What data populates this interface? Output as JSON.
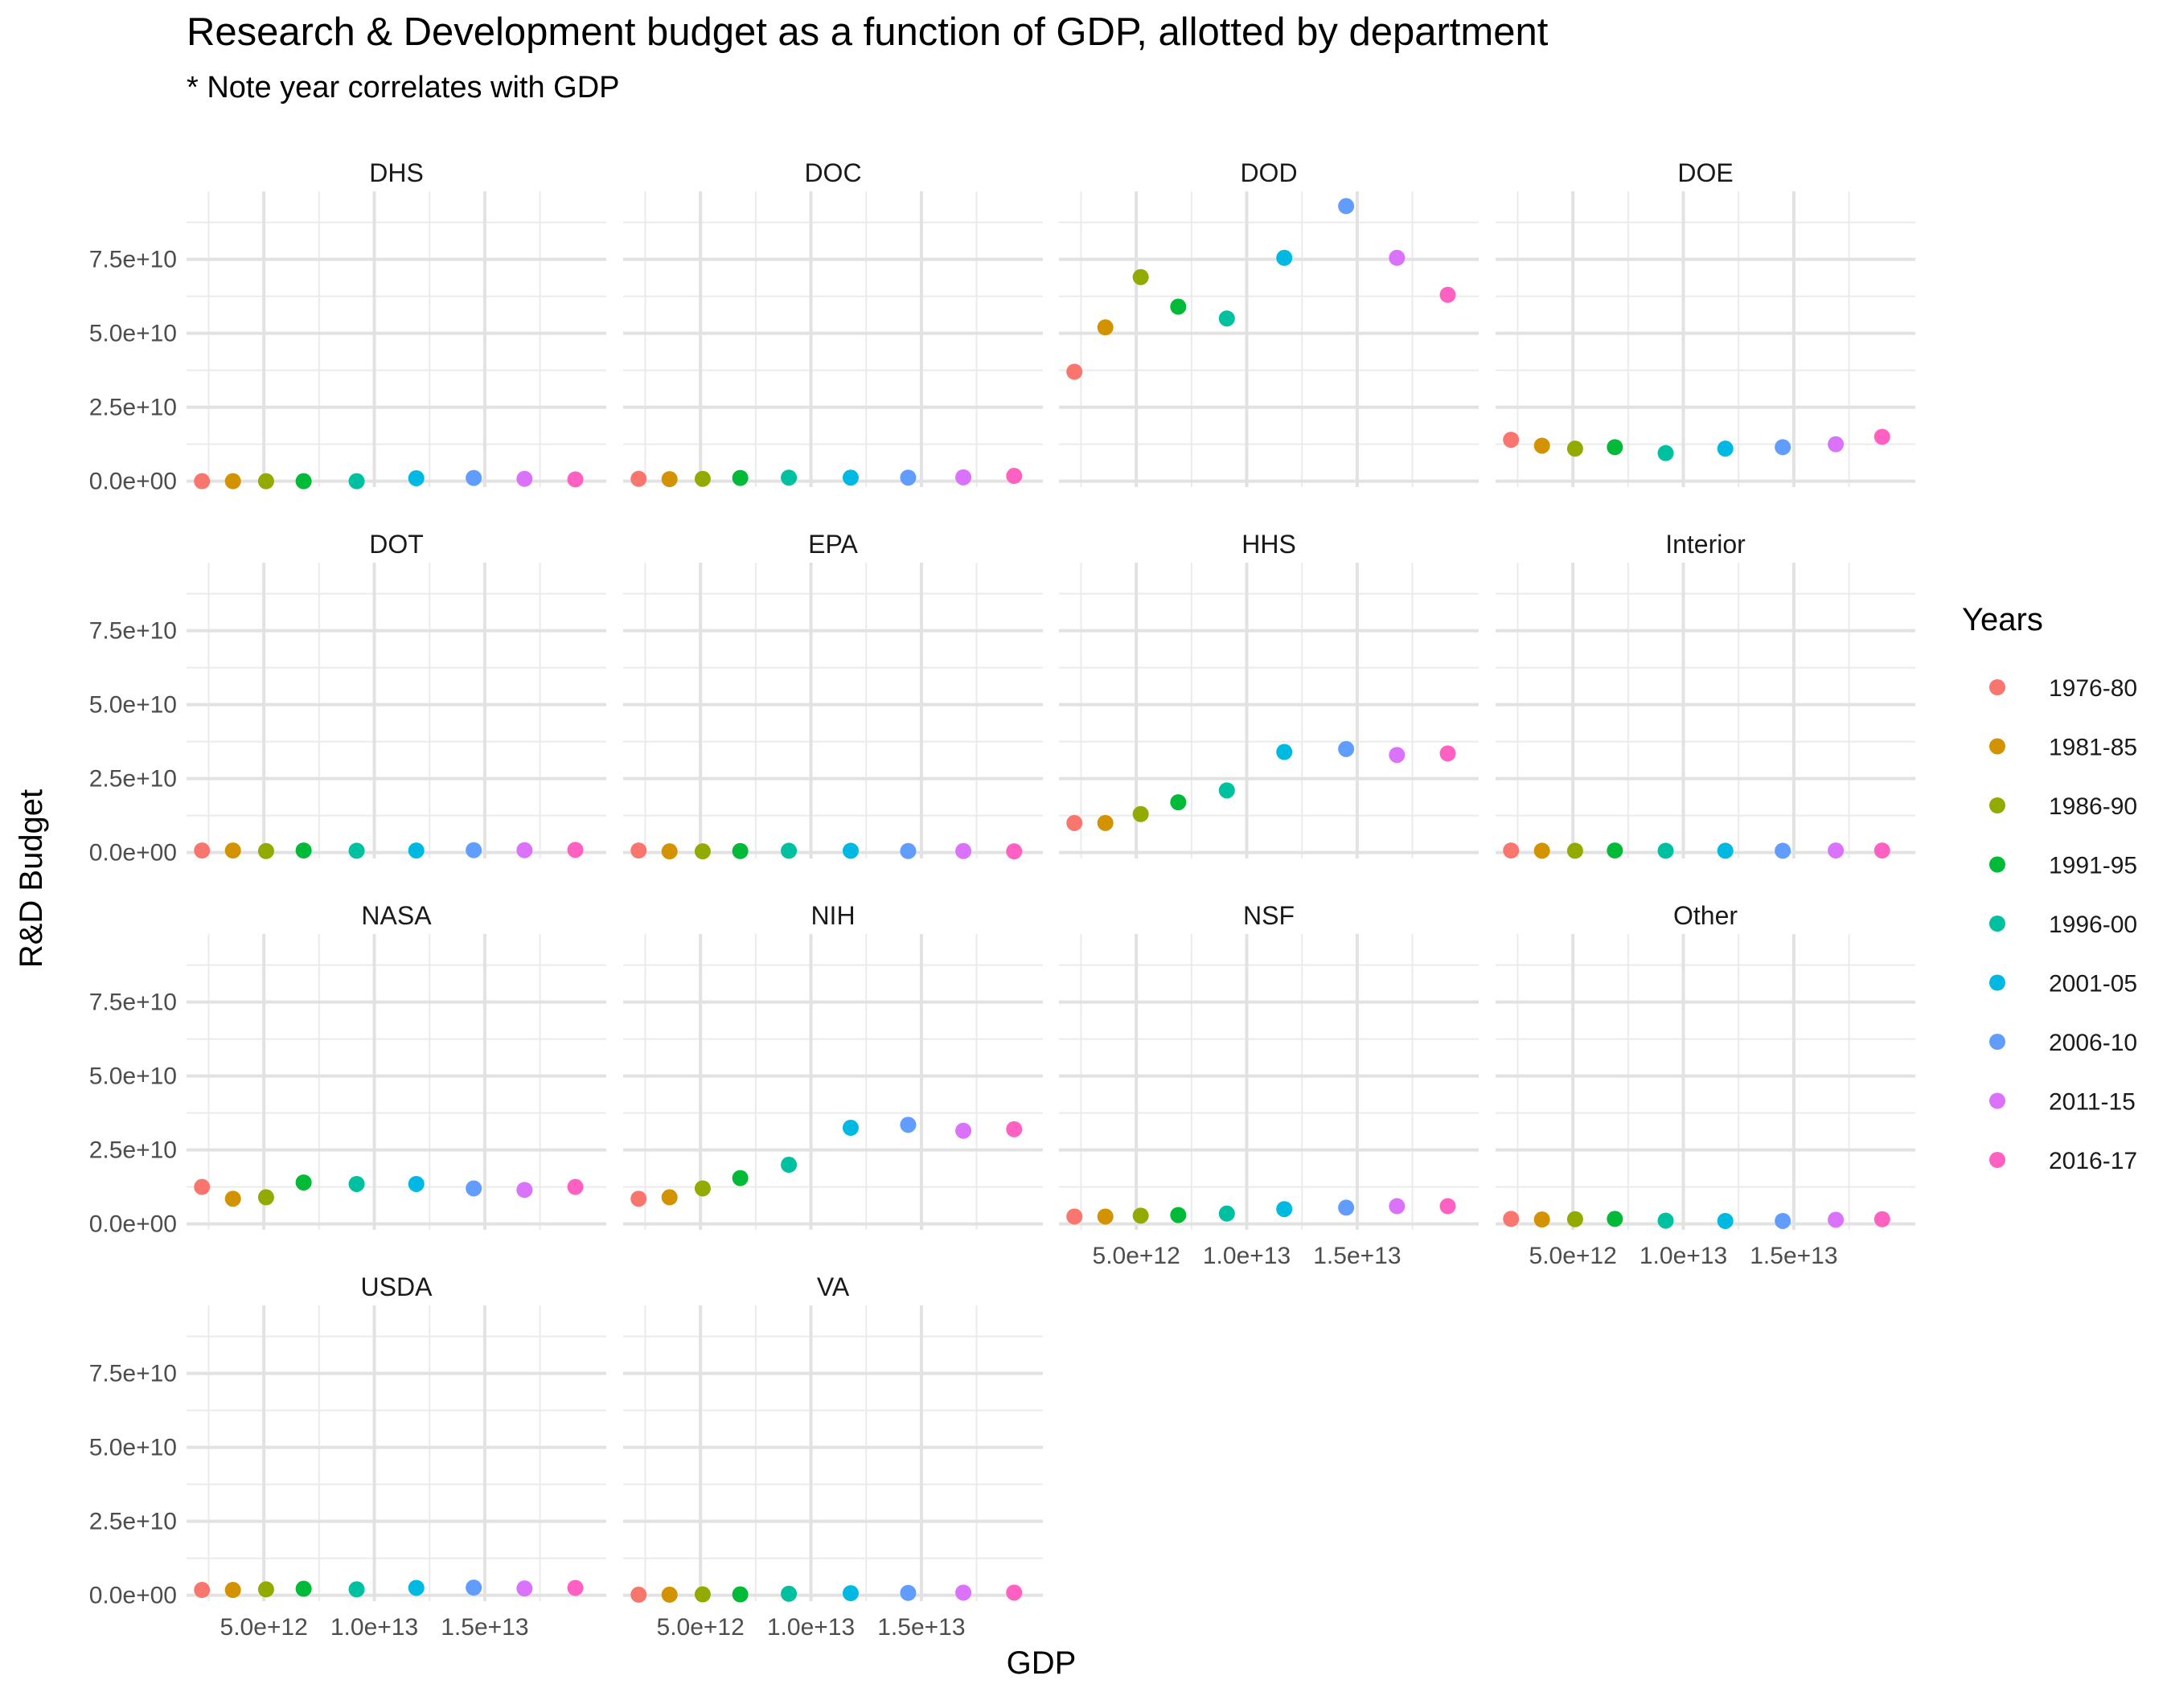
{
  "title": "Research & Development budget as a function of GDP, allotted by department",
  "subtitle": "* Note year correlates with GDP",
  "chart_data": {
    "type": "scatter",
    "facet_layout": "wrap, 4 columns",
    "xlabel": "GDP",
    "ylabel": "R&D Budget",
    "xlim": [
      1500000000000.0,
      20500000000000.0
    ],
    "ylim": [
      -2000000000.0,
      98000000000.0
    ],
    "x_ticks": [
      5000000000000.0,
      10000000000000.0,
      15000000000000.0
    ],
    "x_tick_labels": [
      "5.0e+12",
      "1.0e+13",
      "1.5e+13"
    ],
    "y_ticks": [
      0,
      25000000000.0,
      50000000000.0,
      75000000000.0
    ],
    "y_tick_labels": [
      "0.0e+00",
      "2.5e+10",
      "5.0e+10",
      "7.5e+10"
    ],
    "grid": true,
    "legend": {
      "title": "Years",
      "position": "right",
      "groups": [
        {
          "label": "1976-80",
          "color": "#F8766D"
        },
        {
          "label": "1981-85",
          "color": "#D39200"
        },
        {
          "label": "1986-90",
          "color": "#93AA00"
        },
        {
          "label": "1991-95",
          "color": "#00BA38"
        },
        {
          "label": "1996-00",
          "color": "#00C19F"
        },
        {
          "label": "2001-05",
          "color": "#00B9E3"
        },
        {
          "label": "2006-10",
          "color": "#619CFF"
        },
        {
          "label": "2011-15",
          "color": "#DB72FB"
        },
        {
          "label": "2016-17",
          "color": "#FF61C3"
        }
      ]
    },
    "panels": [
      {
        "name": "DHS",
        "points": [
          {
            "group": "1976-80",
            "x": 2200000000000.0,
            "y": 0
          },
          {
            "group": "1981-85",
            "x": 3600000000000.0,
            "y": 0
          },
          {
            "group": "1986-90",
            "x": 5100000000000.0,
            "y": 0
          },
          {
            "group": "1991-95",
            "x": 6800000000000.0,
            "y": 0
          },
          {
            "group": "1996-00",
            "x": 9200000000000.0,
            "y": 0
          },
          {
            "group": "2001-05",
            "x": 11900000000000.0,
            "y": 1000000000.0
          },
          {
            "group": "2006-10",
            "x": 14500000000000.0,
            "y": 1100000000.0
          },
          {
            "group": "2011-15",
            "x": 16800000000000.0,
            "y": 800000000.0
          },
          {
            "group": "2016-17",
            "x": 19100000000000.0,
            "y": 600000000.0
          }
        ]
      },
      {
        "name": "DOC",
        "points": [
          {
            "group": "1976-80",
            "x": 2200000000000.0,
            "y": 800000000.0
          },
          {
            "group": "1981-85",
            "x": 3600000000000.0,
            "y": 700000000.0
          },
          {
            "group": "1986-90",
            "x": 5100000000000.0,
            "y": 800000000.0
          },
          {
            "group": "1991-95",
            "x": 6800000000000.0,
            "y": 1100000000.0
          },
          {
            "group": "1996-00",
            "x": 9000000000000.0,
            "y": 1200000000.0
          },
          {
            "group": "2001-05",
            "x": 11800000000000.0,
            "y": 1200000000.0
          },
          {
            "group": "2006-10",
            "x": 14400000000000.0,
            "y": 1200000000.0
          },
          {
            "group": "2011-15",
            "x": 16900000000000.0,
            "y": 1300000000.0
          },
          {
            "group": "2016-17",
            "x": 19200000000000.0,
            "y": 1800000000.0
          }
        ]
      },
      {
        "name": "DOD",
        "points": [
          {
            "group": "1976-80",
            "x": 2200000000000.0,
            "y": 37000000000.0
          },
          {
            "group": "1981-85",
            "x": 3600000000000.0,
            "y": 52000000000.0
          },
          {
            "group": "1986-90",
            "x": 5200000000000.0,
            "y": 69000000000.0
          },
          {
            "group": "1991-95",
            "x": 6900000000000.0,
            "y": 59000000000.0
          },
          {
            "group": "1996-00",
            "x": 9100000000000.0,
            "y": 55000000000.0
          },
          {
            "group": "2001-05",
            "x": 11700000000000.0,
            "y": 75500000000.0
          },
          {
            "group": "2006-10",
            "x": 14500000000000.0,
            "y": 93000000000.0
          },
          {
            "group": "2011-15",
            "x": 16800000000000.0,
            "y": 75500000000.0
          },
          {
            "group": "2016-17",
            "x": 19100000000000.0,
            "y": 63000000000.0
          }
        ]
      },
      {
        "name": "DOE",
        "points": [
          {
            "group": "1976-80",
            "x": 2200000000000.0,
            "y": 14000000000.0
          },
          {
            "group": "1981-85",
            "x": 3600000000000.0,
            "y": 12000000000.0
          },
          {
            "group": "1986-90",
            "x": 5100000000000.0,
            "y": 11000000000.0
          },
          {
            "group": "1991-95",
            "x": 6900000000000.0,
            "y": 11500000000.0
          },
          {
            "group": "1996-00",
            "x": 9200000000000.0,
            "y": 9500000000.0
          },
          {
            "group": "2001-05",
            "x": 11900000000000.0,
            "y": 11000000000.0
          },
          {
            "group": "2006-10",
            "x": 14500000000000.0,
            "y": 11500000000.0
          },
          {
            "group": "2011-15",
            "x": 16900000000000.0,
            "y": 12500000000.0
          },
          {
            "group": "2016-17",
            "x": 19000000000000.0,
            "y": 15000000000.0
          }
        ]
      },
      {
        "name": "DOT",
        "points": [
          {
            "group": "1976-80",
            "x": 2200000000000.0,
            "y": 700000000.0
          },
          {
            "group": "1981-85",
            "x": 3600000000000.0,
            "y": 700000000.0
          },
          {
            "group": "1986-90",
            "x": 5100000000000.0,
            "y": 500000000.0
          },
          {
            "group": "1991-95",
            "x": 6800000000000.0,
            "y": 700000000.0
          },
          {
            "group": "1996-00",
            "x": 9200000000000.0,
            "y": 600000000.0
          },
          {
            "group": "2001-05",
            "x": 11900000000000.0,
            "y": 700000000.0
          },
          {
            "group": "2006-10",
            "x": 14500000000000.0,
            "y": 800000000.0
          },
          {
            "group": "2011-15",
            "x": 16800000000000.0,
            "y": 800000000.0
          },
          {
            "group": "2016-17",
            "x": 19100000000000.0,
            "y": 900000000.0
          }
        ]
      },
      {
        "name": "EPA",
        "points": [
          {
            "group": "1976-80",
            "x": 2200000000000.0,
            "y": 700000000.0
          },
          {
            "group": "1981-85",
            "x": 3600000000000.0,
            "y": 400000000.0
          },
          {
            "group": "1986-90",
            "x": 5100000000000.0,
            "y": 400000000.0
          },
          {
            "group": "1991-95",
            "x": 6800000000000.0,
            "y": 500000000.0
          },
          {
            "group": "1996-00",
            "x": 9000000000000.0,
            "y": 600000000.0
          },
          {
            "group": "2001-05",
            "x": 11800000000000.0,
            "y": 600000000.0
          },
          {
            "group": "2006-10",
            "x": 14400000000000.0,
            "y": 500000000.0
          },
          {
            "group": "2011-15",
            "x": 16900000000000.0,
            "y": 500000000.0
          },
          {
            "group": "2016-17",
            "x": 19200000000000.0,
            "y": 400000000.0
          }
        ]
      },
      {
        "name": "HHS",
        "points": [
          {
            "group": "1976-80",
            "x": 2200000000000.0,
            "y": 10000000000.0
          },
          {
            "group": "1981-85",
            "x": 3600000000000.0,
            "y": 10000000000.0
          },
          {
            "group": "1986-90",
            "x": 5200000000000.0,
            "y": 13000000000.0
          },
          {
            "group": "1991-95",
            "x": 6900000000000.0,
            "y": 17000000000.0
          },
          {
            "group": "1996-00",
            "x": 9100000000000.0,
            "y": 21000000000.0
          },
          {
            "group": "2001-05",
            "x": 11700000000000.0,
            "y": 34000000000.0
          },
          {
            "group": "2006-10",
            "x": 14500000000000.0,
            "y": 35000000000.0
          },
          {
            "group": "2011-15",
            "x": 16800000000000.0,
            "y": 33000000000.0
          },
          {
            "group": "2016-17",
            "x": 19100000000000.0,
            "y": 33500000000.0
          }
        ]
      },
      {
        "name": "Interior",
        "points": [
          {
            "group": "1976-80",
            "x": 2200000000000.0,
            "y": 700000000.0
          },
          {
            "group": "1981-85",
            "x": 3600000000000.0,
            "y": 600000000.0
          },
          {
            "group": "1986-90",
            "x": 5100000000000.0,
            "y": 600000000.0
          },
          {
            "group": "1991-95",
            "x": 6900000000000.0,
            "y": 700000000.0
          },
          {
            "group": "1996-00",
            "x": 9200000000000.0,
            "y": 600000000.0
          },
          {
            "group": "2001-05",
            "x": 11900000000000.0,
            "y": 600000000.0
          },
          {
            "group": "2006-10",
            "x": 14500000000000.0,
            "y": 600000000.0
          },
          {
            "group": "2011-15",
            "x": 16900000000000.0,
            "y": 700000000.0
          },
          {
            "group": "2016-17",
            "x": 19000000000000.0,
            "y": 700000000.0
          }
        ]
      },
      {
        "name": "NASA",
        "points": [
          {
            "group": "1976-80",
            "x": 2200000000000.0,
            "y": 12500000000.0
          },
          {
            "group": "1981-85",
            "x": 3600000000000.0,
            "y": 8500000000.0
          },
          {
            "group": "1986-90",
            "x": 5100000000000.0,
            "y": 9000000000.0
          },
          {
            "group": "1991-95",
            "x": 6800000000000.0,
            "y": 14000000000.0
          },
          {
            "group": "1996-00",
            "x": 9200000000000.0,
            "y": 13500000000.0
          },
          {
            "group": "2001-05",
            "x": 11900000000000.0,
            "y": 13500000000.0
          },
          {
            "group": "2006-10",
            "x": 14500000000000.0,
            "y": 12000000000.0
          },
          {
            "group": "2011-15",
            "x": 16800000000000.0,
            "y": 11500000000.0
          },
          {
            "group": "2016-17",
            "x": 19100000000000.0,
            "y": 12500000000.0
          }
        ]
      },
      {
        "name": "NIH",
        "points": [
          {
            "group": "1976-80",
            "x": 2200000000000.0,
            "y": 8500000000.0
          },
          {
            "group": "1981-85",
            "x": 3600000000000.0,
            "y": 9000000000.0
          },
          {
            "group": "1986-90",
            "x": 5100000000000.0,
            "y": 12000000000.0
          },
          {
            "group": "1991-95",
            "x": 6800000000000.0,
            "y": 15500000000.0
          },
          {
            "group": "1996-00",
            "x": 9000000000000.0,
            "y": 20000000000.0
          },
          {
            "group": "2001-05",
            "x": 11800000000000.0,
            "y": 32500000000.0
          },
          {
            "group": "2006-10",
            "x": 14400000000000.0,
            "y": 33500000000.0
          },
          {
            "group": "2011-15",
            "x": 16900000000000.0,
            "y": 31500000000.0
          },
          {
            "group": "2016-17",
            "x": 19200000000000.0,
            "y": 32000000000.0
          }
        ]
      },
      {
        "name": "NSF",
        "points": [
          {
            "group": "1976-80",
            "x": 2200000000000.0,
            "y": 2500000000.0
          },
          {
            "group": "1981-85",
            "x": 3600000000000.0,
            "y": 2500000000.0
          },
          {
            "group": "1986-90",
            "x": 5200000000000.0,
            "y": 2800000000.0
          },
          {
            "group": "1991-95",
            "x": 6900000000000.0,
            "y": 3000000000.0
          },
          {
            "group": "1996-00",
            "x": 9100000000000.0,
            "y": 3500000000.0
          },
          {
            "group": "2001-05",
            "x": 11700000000000.0,
            "y": 5000000000.0
          },
          {
            "group": "2006-10",
            "x": 14500000000000.0,
            "y": 5500000000.0
          },
          {
            "group": "2011-15",
            "x": 16800000000000.0,
            "y": 6000000000.0
          },
          {
            "group": "2016-17",
            "x": 19100000000000.0,
            "y": 6000000000.0
          }
        ]
      },
      {
        "name": "Other",
        "points": [
          {
            "group": "1976-80",
            "x": 2200000000000.0,
            "y": 1700000000.0
          },
          {
            "group": "1981-85",
            "x": 3600000000000.0,
            "y": 1500000000.0
          },
          {
            "group": "1986-90",
            "x": 5100000000000.0,
            "y": 1600000000.0
          },
          {
            "group": "1991-95",
            "x": 6900000000000.0,
            "y": 1700000000.0
          },
          {
            "group": "1996-00",
            "x": 9200000000000.0,
            "y": 1100000000.0
          },
          {
            "group": "2001-05",
            "x": 11900000000000.0,
            "y": 1000000000.0
          },
          {
            "group": "2006-10",
            "x": 14500000000000.0,
            "y": 1000000000.0
          },
          {
            "group": "2011-15",
            "x": 16900000000000.0,
            "y": 1400000000.0
          },
          {
            "group": "2016-17",
            "x": 19000000000000.0,
            "y": 1600000000.0
          }
        ]
      },
      {
        "name": "USDA",
        "points": [
          {
            "group": "1976-80",
            "x": 2200000000000.0,
            "y": 1800000000.0
          },
          {
            "group": "1981-85",
            "x": 3600000000000.0,
            "y": 1800000000.0
          },
          {
            "group": "1986-90",
            "x": 5100000000000.0,
            "y": 2000000000.0
          },
          {
            "group": "1991-95",
            "x": 6800000000000.0,
            "y": 2200000000.0
          },
          {
            "group": "1996-00",
            "x": 9200000000000.0,
            "y": 2000000000.0
          },
          {
            "group": "2001-05",
            "x": 11900000000000.0,
            "y": 2500000000.0
          },
          {
            "group": "2006-10",
            "x": 14500000000000.0,
            "y": 2600000000.0
          },
          {
            "group": "2011-15",
            "x": 16800000000000.0,
            "y": 2300000000.0
          },
          {
            "group": "2016-17",
            "x": 19100000000000.0,
            "y": 2500000000.0
          }
        ]
      },
      {
        "name": "VA",
        "points": [
          {
            "group": "1976-80",
            "x": 2200000000000.0,
            "y": 200000000.0
          },
          {
            "group": "1981-85",
            "x": 3600000000000.0,
            "y": 200000000.0
          },
          {
            "group": "1986-90",
            "x": 5100000000000.0,
            "y": 300000000.0
          },
          {
            "group": "1991-95",
            "x": 6800000000000.0,
            "y": 300000000.0
          },
          {
            "group": "1996-00",
            "x": 9000000000000.0,
            "y": 500000000.0
          },
          {
            "group": "2001-05",
            "x": 11800000000000.0,
            "y": 700000000.0
          },
          {
            "group": "2006-10",
            "x": 14400000000000.0,
            "y": 800000000.0
          },
          {
            "group": "2011-15",
            "x": 16900000000000.0,
            "y": 900000000.0
          },
          {
            "group": "2016-17",
            "x": 19200000000000.0,
            "y": 900000000.0
          }
        ]
      }
    ]
  }
}
